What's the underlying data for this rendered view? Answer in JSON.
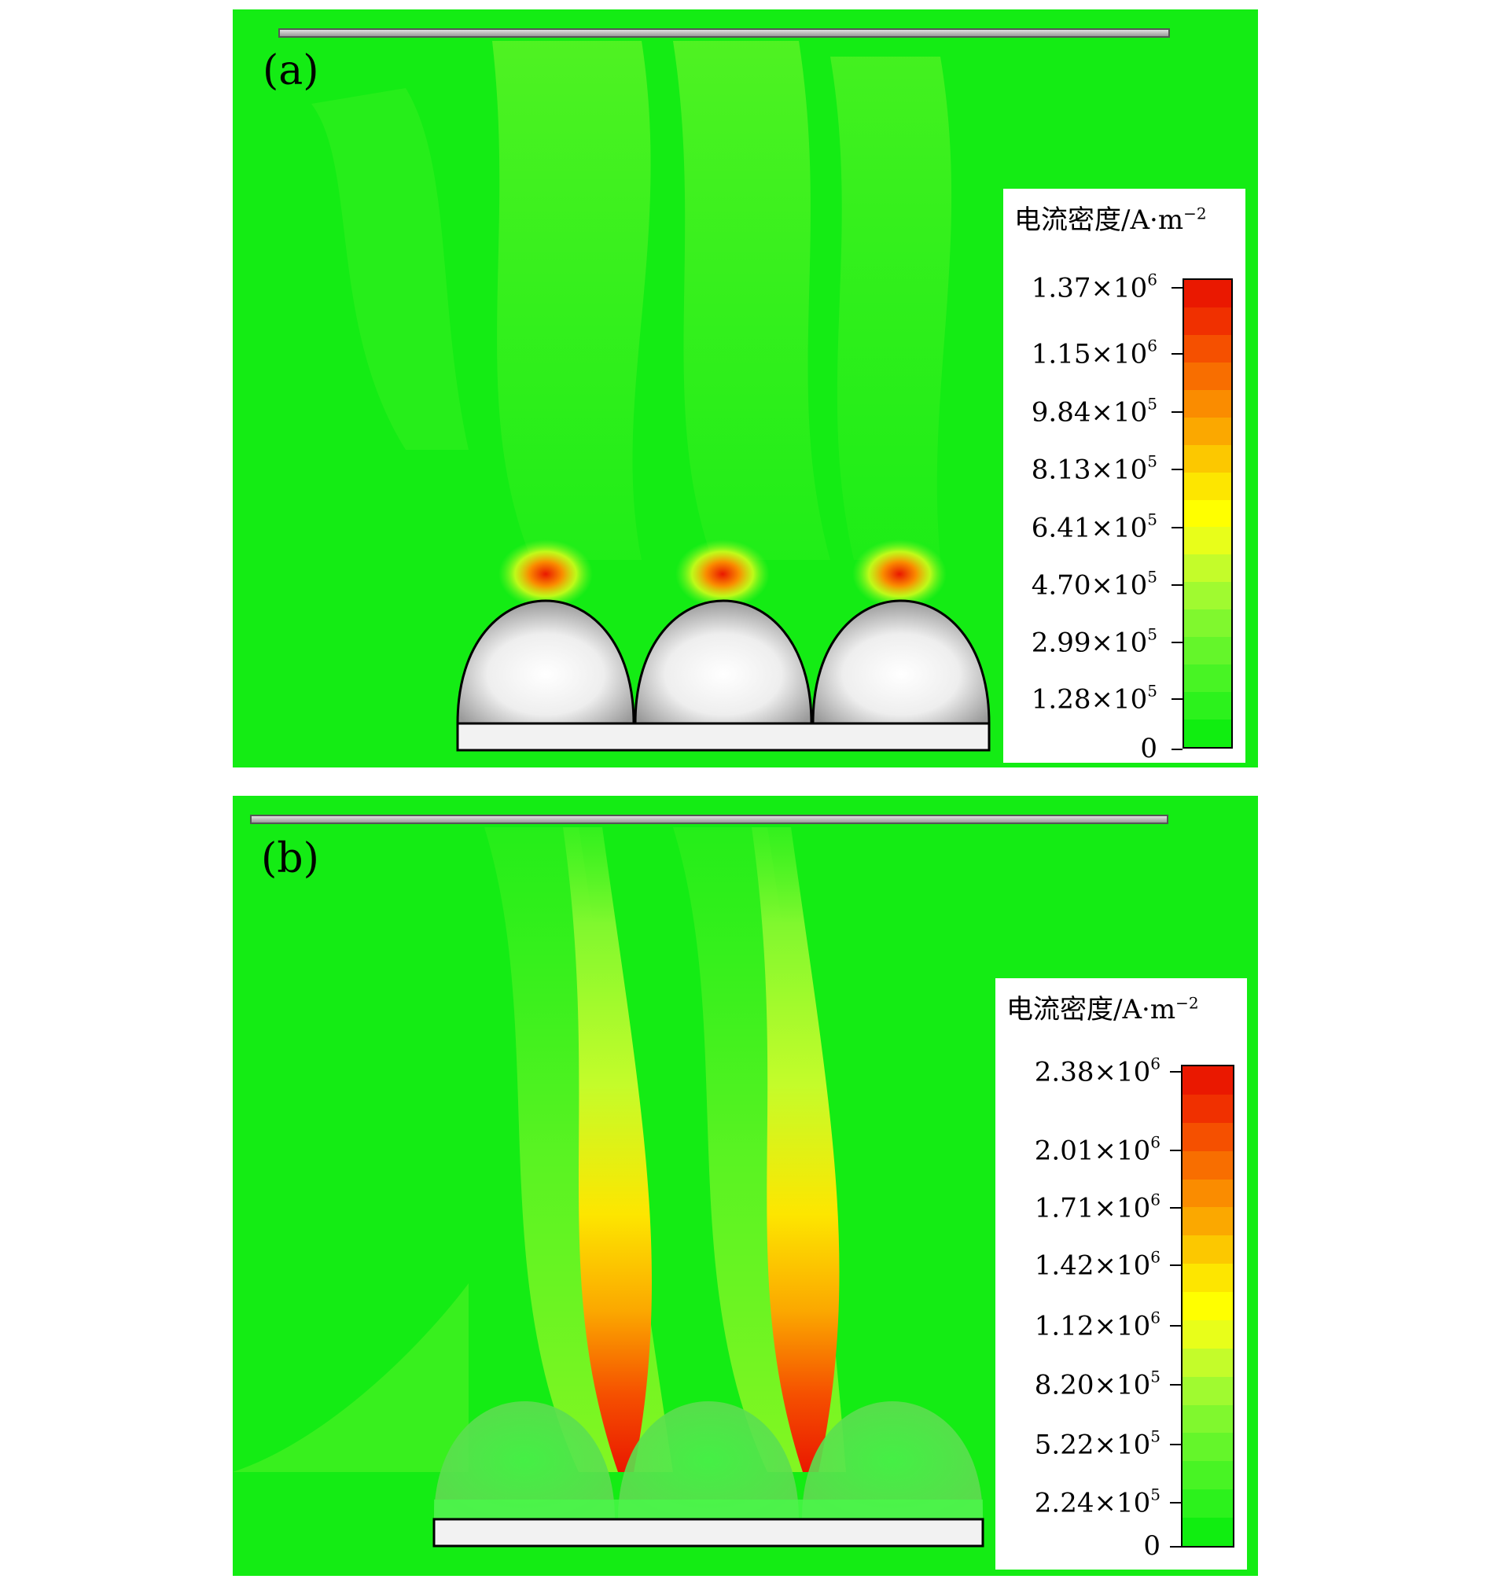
{
  "figure": {
    "panels": [
      {
        "id": "a",
        "label": "(a)",
        "legend_title": "电流密度/A·m",
        "legend_title_exp": "−2",
        "ticks": [
          {
            "mant": "1.37",
            "exp": "6"
          },
          {
            "mant": "1.15",
            "exp": "6"
          },
          {
            "mant": "9.84",
            "exp": "5"
          },
          {
            "mant": "8.13",
            "exp": "5"
          },
          {
            "mant": "6.41",
            "exp": "5"
          },
          {
            "mant": "4.70",
            "exp": "5"
          },
          {
            "mant": "2.99",
            "exp": "5"
          },
          {
            "mant": "1.28",
            "exp": "5"
          },
          {
            "mant": "0",
            "exp": ""
          }
        ]
      },
      {
        "id": "b",
        "label": "(b)",
        "legend_title": "电流密度/A·m",
        "legend_title_exp": "−2",
        "ticks": [
          {
            "mant": "2.38",
            "exp": "6"
          },
          {
            "mant": "2.01",
            "exp": "6"
          },
          {
            "mant": "1.71",
            "exp": "6"
          },
          {
            "mant": "1.42",
            "exp": "6"
          },
          {
            "mant": "1.12",
            "exp": "6"
          },
          {
            "mant": "8.20",
            "exp": "5"
          },
          {
            "mant": "5.22",
            "exp": "5"
          },
          {
            "mant": "2.24",
            "exp": "5"
          },
          {
            "mant": "0",
            "exp": ""
          }
        ]
      }
    ],
    "colors": {
      "background_green": "#14ec14",
      "scale": [
        "#10ee10",
        "#2cf21c",
        "#48f424",
        "#64f62a",
        "#80f82e",
        "#a0fa30",
        "#c4fc2a",
        "#e8fe1a",
        "#ffff00",
        "#fde600",
        "#fcc800",
        "#fba800",
        "#fa8c00",
        "#f86e00",
        "#f55000",
        "#f03000",
        "#ea1800"
      ]
    }
  }
}
